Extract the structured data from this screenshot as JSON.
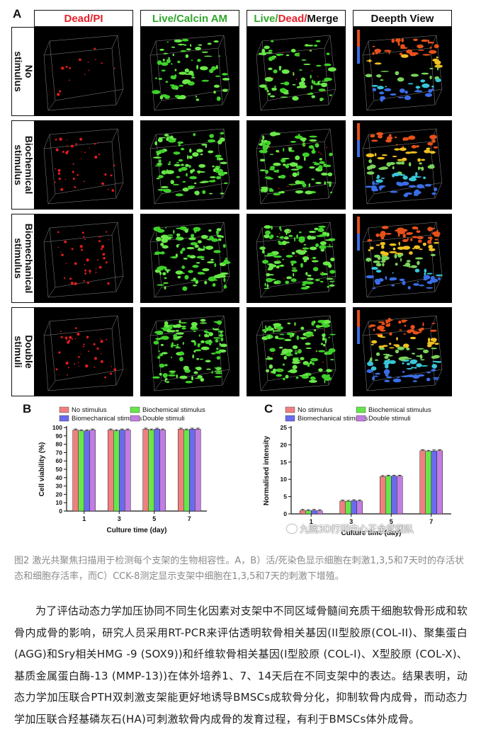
{
  "panel_a": {
    "letter": "A",
    "columns": [
      {
        "label_parts": [
          {
            "text": "Dead/PI",
            "color": "#e8202a"
          }
        ]
      },
      {
        "label_parts": [
          {
            "text": "Live/Calcin AM",
            "color": "#2fa82a"
          }
        ]
      },
      {
        "label_parts": [
          {
            "text": "Live/",
            "color": "#2fa82a"
          },
          {
            "text": "Dead/",
            "color": "#e8202a"
          },
          {
            "text": "Merge",
            "color": "#111111"
          }
        ]
      },
      {
        "label_parts": [
          {
            "text": "Deepth View",
            "color": "#111111"
          }
        ]
      }
    ],
    "rows": [
      {
        "label": "No\nstimulus"
      },
      {
        "label": "Biochemical\nstimulus"
      },
      {
        "label": "Biomechanical\nstimulus"
      },
      {
        "label": "Double\nstimuli"
      }
    ]
  },
  "chart_b_letter": "B",
  "chart_c_letter": "C",
  "chart_data": [
    {
      "type": "bar",
      "id": "B",
      "categories": [
        "1",
        "3",
        "5",
        "7"
      ],
      "xlabel": "Culture time (day)",
      "ylabel": "Cell viability (%)",
      "ylim": [
        0,
        100
      ],
      "yticks": [
        0,
        10,
        20,
        30,
        40,
        50,
        60,
        70,
        80,
        90,
        100
      ],
      "series": [
        {
          "name": "No stimulus",
          "color": "#f08080",
          "values": [
            97,
            97,
            98,
            98
          ]
        },
        {
          "name": "Biochemical stimulus",
          "color": "#66e64a",
          "values": [
            96,
            96,
            97,
            97
          ]
        },
        {
          "name": "Biomechanical stimulus",
          "color": "#6a6aee",
          "values": [
            96,
            97,
            98,
            98
          ]
        },
        {
          "name": "Double stimuli",
          "color": "#c27de0",
          "values": [
            97,
            97,
            97,
            98
          ]
        }
      ],
      "legend": "top"
    },
    {
      "type": "bar",
      "id": "C",
      "categories": [
        "1",
        "3",
        "5",
        "7"
      ],
      "xlabel": "Culture time (day)",
      "ylabel": "Normalised intensity",
      "ylim": [
        0,
        25
      ],
      "yticks": [
        0,
        5,
        10,
        15,
        20,
        25
      ],
      "series": [
        {
          "name": "No stimulus",
          "color": "#f08080",
          "values": [
            1.0,
            3.7,
            10.8,
            18.3
          ]
        },
        {
          "name": "Biochemical stimulus",
          "color": "#66e64a",
          "values": [
            0.9,
            3.6,
            10.9,
            18.1
          ]
        },
        {
          "name": "Biomechanical stimulus",
          "color": "#6a6aee",
          "values": [
            1.0,
            3.8,
            10.9,
            18.2
          ]
        },
        {
          "name": "Double stimuli",
          "color": "#c27de0",
          "values": [
            0.9,
            3.7,
            10.9,
            18.3
          ]
        }
      ],
      "legend": "top"
    }
  ],
  "watermark": "九院3D打印中心王金武团队",
  "caption": "图2 激光共聚焦扫描用于检测每个支架的生物相容性。A，B）活/死染色显示细胞在刺激1,3,5和7天时的存活状态和细胞存活率，而C）CCK-8测定显示支架中细胞在1,3,5和7天的刺激下增殖。",
  "body": "为了评估动态力学加压协同不同生化因素对支架中不同区域骨髓间充质干细胞软骨形成和软骨内成骨的影响，研究人员采用RT-PCR来评估透明软骨相关基因(II型胶原(COL-II)、聚集蛋白(AGG)和Sry相关HMG -9 (SOX9))和纤维软骨相关基因(I型胶原 (COL-I)、X型胶原 (COL-X)、基质金属蛋白酶-13 (MMP-13))在体外培养1、7、14天后在不同支架中的表达。结果表明，动态力学加压联合PTH双刺激支架能更好地诱导BMSCs成软骨分化，抑制软骨内成骨，而动态力学加压联合羟基磷灰石(HA)可刺激软骨内成骨的发育过程，有利于BMSCs体外成骨。"
}
